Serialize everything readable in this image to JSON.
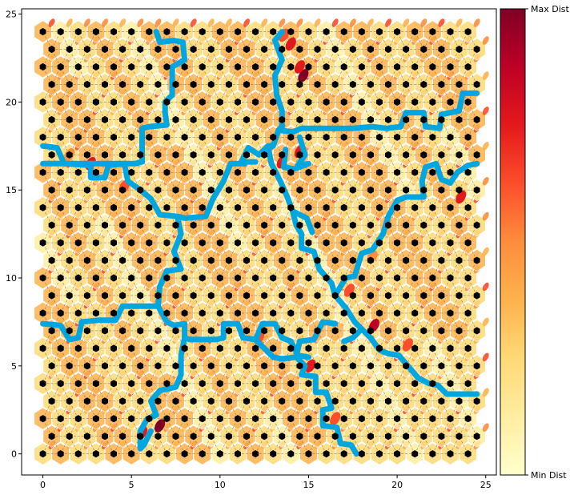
{
  "chart_data": {
    "type": "heatmap",
    "title": "",
    "xlabel": "",
    "ylabel": "",
    "xlim": [
      -1.2,
      25.6
    ],
    "ylim": [
      -1.2,
      25.3
    ],
    "x_ticks": [
      0,
      5,
      10,
      15,
      20,
      25
    ],
    "y_ticks": [
      0,
      5,
      10,
      15,
      20,
      25
    ],
    "grid": {
      "columns": 25,
      "rows": 25,
      "row_spacing": 1.0,
      "odd_row_offset": 0.5
    },
    "colorbar": {
      "labels": [
        "Max Dist",
        "Min Dist"
      ],
      "colormap": [
        "#ffffcc",
        "#ffeda0",
        "#fed976",
        "#feb24c",
        "#fd8d3c",
        "#fc4e2a",
        "#e31a1c",
        "#bd0026",
        "#800026"
      ]
    },
    "colors": {
      "node": "#000000",
      "boundary": "#00a6e0",
      "hex_fill": "#fee29a",
      "link_line": "#7a5a2a"
    },
    "hot_cells": [
      {
        "x": 14.7,
        "y": 21.5,
        "d": 0.95
      },
      {
        "x": 14.5,
        "y": 22.0,
        "d": 0.7
      },
      {
        "x": 14.0,
        "y": 23.3,
        "d": 0.75
      },
      {
        "x": 13.6,
        "y": 23.8,
        "d": 0.6
      },
      {
        "x": 18.7,
        "y": 7.3,
        "d": 0.9
      },
      {
        "x": 6.6,
        "y": 1.6,
        "d": 0.95
      },
      {
        "x": 5.6,
        "y": 1.2,
        "d": 0.7
      },
      {
        "x": 23.6,
        "y": 14.6,
        "d": 0.8
      },
      {
        "x": 14.5,
        "y": 17.2,
        "d": 0.7
      },
      {
        "x": 13.5,
        "y": 16.6,
        "d": 0.75
      },
      {
        "x": 15.1,
        "y": 5.0,
        "d": 0.75
      },
      {
        "x": 2.7,
        "y": 16.5,
        "d": 0.7
      },
      {
        "x": 4.6,
        "y": 15.2,
        "d": 0.65
      },
      {
        "x": 12.2,
        "y": 6.6,
        "d": 0.6
      },
      {
        "x": 17.3,
        "y": 9.3,
        "d": 0.65
      },
      {
        "x": 18.6,
        "y": 11.2,
        "d": 0.55
      },
      {
        "x": 20.6,
        "y": 6.2,
        "d": 0.6
      },
      {
        "x": 1.5,
        "y": 17.0,
        "d": 0.55
      },
      {
        "x": 9.0,
        "y": 13.6,
        "d": 0.55
      },
      {
        "x": 16.5,
        "y": 2.0,
        "d": 0.6
      }
    ],
    "series": [
      {
        "values": [
          [
            6.4,
            24.0
          ],
          [
            6.6,
            23.4
          ],
          [
            7.4,
            23.5
          ],
          [
            7.9,
            23.4
          ],
          [
            8.0,
            22.4
          ],
          [
            7.3,
            22.0
          ],
          [
            7.3,
            20.4
          ],
          [
            6.9,
            20.0
          ],
          [
            6.9,
            19.4
          ],
          [
            7.0,
            18.7
          ],
          [
            6.0,
            18.6
          ],
          [
            5.6,
            18.5
          ],
          [
            5.6,
            16.6
          ],
          [
            5.2,
            16.5
          ],
          [
            0.0,
            16.5
          ]
        ]
      },
      {
        "values": [
          [
            0.0,
            17.5
          ],
          [
            0.8,
            17.4
          ],
          [
            1.2,
            16.5
          ]
        ]
      },
      {
        "values": [
          [
            1.2,
            16.5
          ],
          [
            2.7,
            16.4
          ],
          [
            2.7,
            15.7
          ],
          [
            3.5,
            15.7
          ],
          [
            3.7,
            16.4
          ],
          [
            4.6,
            16.5
          ],
          [
            4.8,
            15.5
          ],
          [
            5.5,
            15.0
          ],
          [
            6.1,
            14.5
          ],
          [
            6.6,
            13.6
          ],
          [
            7.6,
            13.5
          ],
          [
            8.0,
            13.4
          ],
          [
            9.2,
            13.5
          ],
          [
            9.6,
            14.5
          ],
          [
            10.2,
            15.5
          ],
          [
            10.6,
            16.5
          ],
          [
            11.4,
            16.5
          ]
        ]
      },
      {
        "values": [
          [
            7.6,
            13.5
          ],
          [
            7.8,
            12.5
          ],
          [
            7.4,
            11.5
          ],
          [
            7.8,
            10.5
          ],
          [
            7.0,
            10.4
          ],
          [
            6.6,
            9.5
          ],
          [
            6.5,
            8.4
          ],
          [
            5.7,
            8.4
          ],
          [
            4.5,
            8.4
          ],
          [
            4.1,
            7.6
          ],
          [
            3.2,
            7.6
          ],
          [
            2.2,
            7.5
          ],
          [
            2.0,
            6.6
          ],
          [
            1.5,
            6.5
          ],
          [
            1.0,
            7.3
          ],
          [
            0.0,
            7.4
          ]
        ]
      },
      {
        "values": [
          [
            6.5,
            8.4
          ],
          [
            7.0,
            7.5
          ],
          [
            7.4,
            7.3
          ],
          [
            8.0,
            7.4
          ],
          [
            8.0,
            6.6
          ],
          [
            8.3,
            6.5
          ],
          [
            9.8,
            6.5
          ],
          [
            10.2,
            6.6
          ],
          [
            10.2,
            7.4
          ],
          [
            11.0,
            7.4
          ],
          [
            11.3,
            6.6
          ],
          [
            12.0,
            6.5
          ],
          [
            12.4,
            7.4
          ],
          [
            13.1,
            7.4
          ],
          [
            13.5,
            6.6
          ],
          [
            14.0,
            6.4
          ],
          [
            14.4,
            5.6
          ],
          [
            15.0,
            5.5
          ]
        ]
      },
      {
        "values": [
          [
            8.0,
            6.6
          ],
          [
            7.8,
            5.6
          ],
          [
            7.8,
            4.5
          ],
          [
            7.5,
            3.8
          ],
          [
            6.6,
            3.6
          ],
          [
            6.1,
            3.0
          ],
          [
            6.4,
            2.2
          ],
          [
            5.9,
            2.0
          ],
          [
            5.5,
            1.3
          ],
          [
            5.5,
            0.3
          ],
          [
            5.7,
            0.5
          ],
          [
            6.1,
            1.3
          ]
        ]
      },
      {
        "values": [
          [
            12.0,
            16.6
          ],
          [
            11.2,
            16.6
          ],
          [
            11.6,
            17.4
          ],
          [
            12.2,
            17.0
          ],
          [
            12.7,
            17.5
          ],
          [
            13.0,
            17.5
          ],
          [
            13.3,
            18.4
          ],
          [
            13.5,
            18.6
          ],
          [
            13.5,
            19.5
          ],
          [
            13.2,
            20.4
          ],
          [
            13.1,
            21.5
          ],
          [
            13.5,
            22.4
          ],
          [
            13.1,
            23.5
          ],
          [
            13.5,
            24.0
          ]
        ]
      },
      {
        "values": [
          [
            12.7,
            17.5
          ],
          [
            12.9,
            16.5
          ],
          [
            13.4,
            15.5
          ],
          [
            13.8,
            14.6
          ],
          [
            14.1,
            13.8
          ],
          [
            14.3,
            13.0
          ],
          [
            14.6,
            12.5
          ],
          [
            14.6,
            11.7
          ],
          [
            15.3,
            11.5
          ],
          [
            15.6,
            10.5
          ],
          [
            16.3,
            9.7
          ],
          [
            16.5,
            9.0
          ],
          [
            17.1,
            8.3
          ],
          [
            17.6,
            7.5
          ],
          [
            18.0,
            7.1
          ],
          [
            17.5,
            6.6
          ],
          [
            17.0,
            6.4
          ]
        ]
      },
      {
        "values": [
          [
            14.1,
            13.8
          ],
          [
            14.9,
            13.4
          ],
          [
            15.2,
            12.6
          ]
        ]
      },
      {
        "values": [
          [
            13.3,
            18.4
          ],
          [
            14.1,
            18.3
          ],
          [
            14.6,
            18.5
          ],
          [
            17.5,
            18.5
          ],
          [
            18.6,
            18.6
          ],
          [
            19.4,
            18.5
          ],
          [
            20.2,
            18.6
          ],
          [
            20.5,
            19.4
          ],
          [
            21.5,
            19.4
          ],
          [
            21.6,
            18.6
          ],
          [
            22.4,
            18.5
          ],
          [
            22.5,
            19.3
          ],
          [
            23.5,
            19.5
          ],
          [
            23.7,
            20.5
          ],
          [
            24.5,
            20.5
          ]
        ]
      },
      {
        "values": [
          [
            14.5,
            18.0
          ],
          [
            14.8,
            17.0
          ],
          [
            14.4,
            16.4
          ],
          [
            15.0,
            16.5
          ],
          [
            14.2,
            16.2
          ],
          [
            13.6,
            16.3
          ],
          [
            13.7,
            17.3
          ]
        ]
      },
      {
        "values": [
          [
            16.5,
            9.0
          ],
          [
            17.1,
            10.0
          ],
          [
            17.6,
            10.1
          ],
          [
            18.0,
            11.4
          ],
          [
            18.6,
            11.6
          ],
          [
            19.2,
            12.5
          ],
          [
            19.5,
            13.5
          ],
          [
            20.0,
            14.4
          ],
          [
            20.5,
            14.6
          ],
          [
            21.5,
            14.6
          ],
          [
            21.4,
            15.5
          ],
          [
            21.6,
            16.3
          ],
          [
            22.2,
            16.5
          ],
          [
            22.5,
            15.6
          ],
          [
            23.0,
            15.4
          ],
          [
            23.4,
            16.0
          ],
          [
            24.0,
            16.4
          ],
          [
            24.5,
            16.5
          ]
        ]
      },
      {
        "values": [
          [
            18.0,
            7.1
          ],
          [
            18.5,
            6.6
          ],
          [
            19.0,
            5.9
          ],
          [
            19.5,
            5.7
          ],
          [
            20.1,
            5.6
          ],
          [
            20.6,
            5.0
          ],
          [
            21.2,
            4.3
          ],
          [
            21.8,
            4.0
          ],
          [
            22.3,
            3.9
          ],
          [
            22.8,
            3.4
          ],
          [
            23.4,
            3.4
          ],
          [
            24.5,
            3.4
          ]
        ]
      },
      {
        "values": [
          [
            16.5,
            7.4
          ],
          [
            15.8,
            7.5
          ],
          [
            15.3,
            6.5
          ],
          [
            14.5,
            6.4
          ],
          [
            14.3,
            5.5
          ],
          [
            14.8,
            5.0
          ],
          [
            14.6,
            4.5
          ],
          [
            15.4,
            4.4
          ],
          [
            15.4,
            3.5
          ],
          [
            16.0,
            3.5
          ],
          [
            16.3,
            2.6
          ],
          [
            15.8,
            2.5
          ],
          [
            15.8,
            1.6
          ],
          [
            16.6,
            1.5
          ],
          [
            16.8,
            0.6
          ],
          [
            17.4,
            0.5
          ],
          [
            17.7,
            0.0
          ]
        ]
      },
      {
        "values": [
          [
            12.0,
            6.5
          ],
          [
            12.5,
            6.0
          ],
          [
            13.0,
            5.5
          ],
          [
            13.5,
            5.4
          ],
          [
            14.3,
            5.5
          ]
        ]
      }
    ]
  }
}
